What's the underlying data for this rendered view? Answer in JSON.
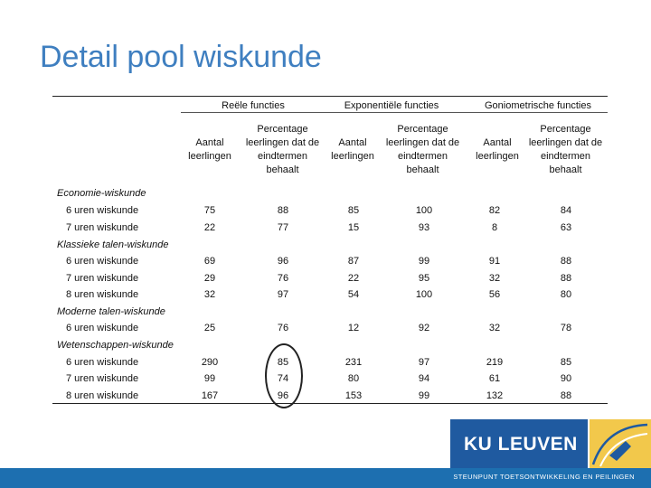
{
  "title": "Detail pool wiskunde",
  "groups": [
    "Reële functies",
    "Exponentiële functies",
    "Goniometrische functies"
  ],
  "col_headers": [
    "Aantal leerlingen",
    "Percentage leerlingen dat de eindtermen behaalt",
    "Aantal leerlingen",
    "Percentage leerlingen dat de eindtermen behaalt",
    "Aantal leerlingen",
    "Percentage leerlingen dat de eindtermen behaalt"
  ],
  "sections": [
    {
      "name": "Economie-wiskunde",
      "rows": [
        {
          "label": "6 uren wiskunde",
          "values": [
            "75",
            "88",
            "85",
            "100",
            "82",
            "84"
          ]
        },
        {
          "label": "7 uren wiskunde",
          "values": [
            "22",
            "77",
            "15",
            "93",
            "8",
            "63"
          ]
        }
      ]
    },
    {
      "name": "Klassieke talen-wiskunde",
      "rows": [
        {
          "label": "6 uren wiskunde",
          "values": [
            "69",
            "96",
            "87",
            "99",
            "91",
            "88"
          ]
        },
        {
          "label": "7 uren wiskunde",
          "values": [
            "29",
            "76",
            "22",
            "95",
            "32",
            "88"
          ]
        },
        {
          "label": "8 uren wiskunde",
          "values": [
            "32",
            "97",
            "54",
            "100",
            "56",
            "80"
          ]
        }
      ]
    },
    {
      "name": "Moderne talen-wiskunde",
      "rows": [
        {
          "label": "6 uren wiskunde",
          "values": [
            "25",
            "76",
            "12",
            "92",
            "32",
            "78"
          ]
        }
      ]
    },
    {
      "name": "Wetenschappen-wiskunde",
      "rows": [
        {
          "label": "6 uren wiskunde",
          "values": [
            "290",
            "85",
            "231",
            "97",
            "219",
            "85"
          ]
        },
        {
          "label": "7 uren wiskunde",
          "values": [
            "99",
            "74",
            "80",
            "94",
            "61",
            "90"
          ]
        },
        {
          "label": "8 uren wiskunde",
          "values": [
            "167",
            "96",
            "153",
            "99",
            "132",
            "88"
          ]
        }
      ]
    }
  ],
  "logo": {
    "text": "KU LEUVEN"
  },
  "footer": "STEUNPUNT TOETSONTWIKKELING EN PEILINGEN",
  "colors": {
    "title": "#3f7fc0",
    "logo_bg": "#1f5aa0",
    "footer_bg": "#1d6fb0",
    "emblem_yellow": "#f2c84b"
  }
}
